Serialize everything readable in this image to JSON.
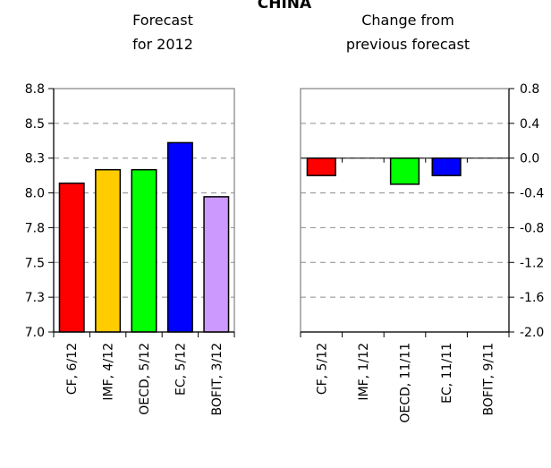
{
  "figure": {
    "title": "CHINA"
  },
  "chart_data": [
    {
      "type": "bar",
      "subtitle": [
        "Forecast",
        "for 2012"
      ],
      "categories": [
        "CF, 6/12",
        "IMF, 4/12",
        "OECD, 5/12",
        "EC, 5/12",
        "BOFIT, 3/12"
      ],
      "values": [
        8.1,
        8.2,
        8.2,
        8.4,
        8.0
      ],
      "colors": [
        "#ff0000",
        "#ffcc00",
        "#00ff00",
        "#0000ff",
        "#cc99ff"
      ],
      "ylim": [
        7.0,
        8.8
      ],
      "yticks": [
        "8.8",
        "8.5",
        "8.3",
        "8.0",
        "7.8",
        "7.5",
        "7.3",
        "7.0"
      ],
      "grid": true
    },
    {
      "type": "bar",
      "subtitle": [
        "Change from",
        "previous forecast"
      ],
      "categories": [
        "CF, 5/12",
        "IMF, 1/12",
        "OECD, 11/11",
        "EC, 11/11",
        "BOFIT, 9/11"
      ],
      "values": [
        -0.2,
        0.0,
        -0.3,
        -0.2,
        0.0
      ],
      "colors": [
        "#ff0000",
        "#ffcc00",
        "#00ff00",
        "#0000ff",
        "#cc99ff"
      ],
      "ylim": [
        -2.0,
        0.8
      ],
      "yticks": [
        "0.8",
        "0.4",
        "0.0",
        "-0.4",
        "-0.8",
        "-1.2",
        "-1.6",
        "-2.0"
      ],
      "grid": true
    }
  ]
}
